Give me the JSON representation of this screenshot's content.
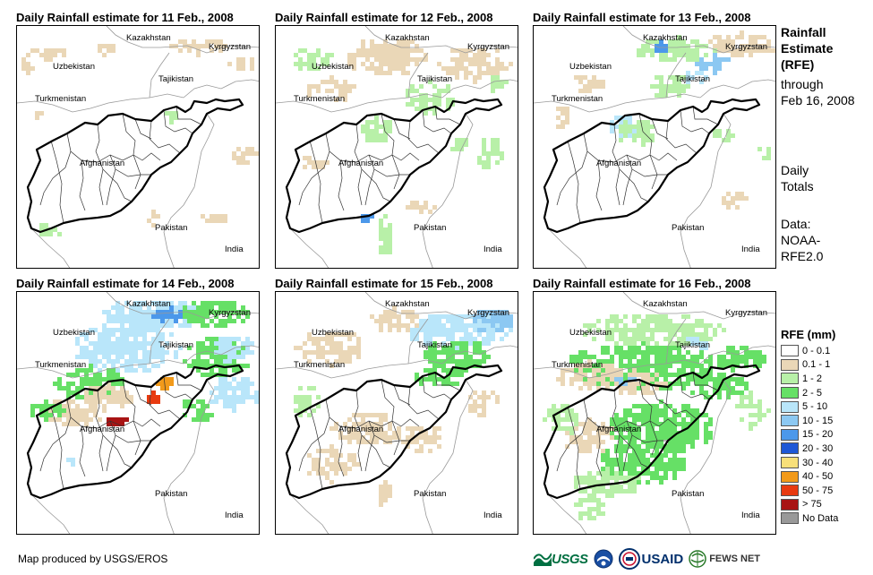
{
  "panels": [
    {
      "title": "Daily Rainfall estimate for 11 Feb., 2008"
    },
    {
      "title": "Daily Rainfall estimate for 12 Feb., 2008"
    },
    {
      "title": "Daily Rainfall estimate for 13 Feb., 2008"
    },
    {
      "title": "Daily Rainfall estimate for 14 Feb., 2008"
    },
    {
      "title": "Daily Rainfall estimate for 15 Feb., 2008"
    },
    {
      "title": "Daily Rainfall estimate for 16 Feb., 2008"
    }
  ],
  "places": {
    "kazakhstan": "Kazakhstan",
    "kyrgyzstan": "Kyrgyzstan",
    "uzbekistan": "Uzbekistan",
    "tajikistan": "Tajikistan",
    "turkmenistan": "Turkmenistan",
    "afghanistan": "Afghanistan",
    "pakistan": "Pakistan",
    "india": "India"
  },
  "sidebar": {
    "heading_1": "Rainfall",
    "heading_2": "Estimate",
    "heading_3": "(RFE)",
    "through_1": "through",
    "through_2": "Feb 16, 2008",
    "totals_1": "Daily",
    "totals_2": "Totals",
    "data_1": "Data:",
    "data_2": "NOAA-",
    "data_3": "RFE2.0"
  },
  "legend": {
    "title": "RFE (mm)",
    "items": [
      {
        "label": "0 - 0.1",
        "color": "#ffffff"
      },
      {
        "label": "0.1 - 1",
        "color": "#ead7b7"
      },
      {
        "label": "1 - 2",
        "color": "#b8f0a8"
      },
      {
        "label": "2 - 5",
        "color": "#66e066"
      },
      {
        "label": "5 - 10",
        "color": "#b9e6fa"
      },
      {
        "label": "10 - 15",
        "color": "#8cc8f2"
      },
      {
        "label": "15 - 20",
        "color": "#4c98ea"
      },
      {
        "label": "20 - 30",
        "color": "#1f58d6"
      },
      {
        "label": "30 - 40",
        "color": "#f8e07a"
      },
      {
        "label": "40 - 50",
        "color": "#f29a1a"
      },
      {
        "label": "50 - 75",
        "color": "#e83a10"
      },
      {
        "label": "> 75",
        "color": "#a81414"
      },
      {
        "label": "No Data",
        "color": "#999999"
      }
    ]
  },
  "credit": "Map produced by USGS/EROS",
  "logos": {
    "usgs": "USGS",
    "usaid": "USAID",
    "fews": "FEWS NET"
  }
}
